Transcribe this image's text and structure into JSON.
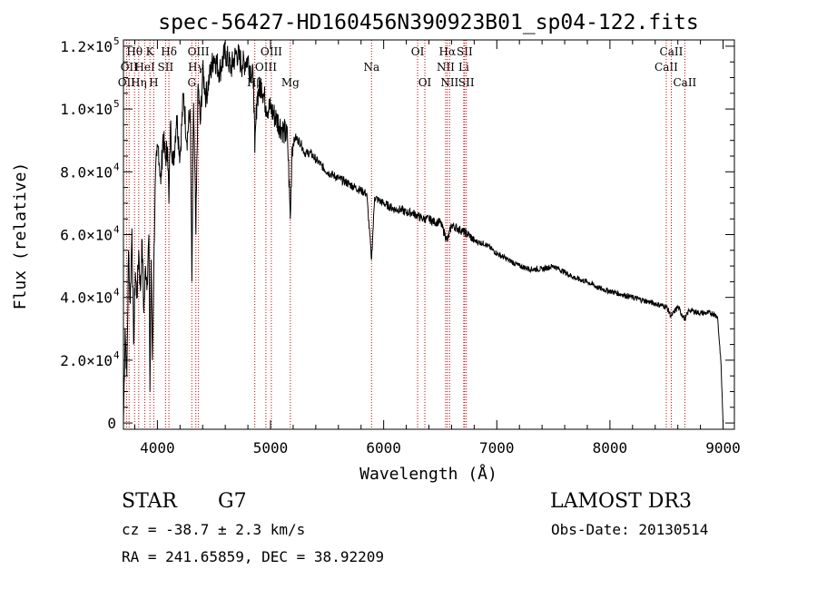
{
  "chart_data": {
    "type": "line",
    "title": "spec-56427-HD160456N390923B01_sp04-122.fits",
    "xlabel": "Wavelength (Å)",
    "ylabel": "Flux (relative)",
    "xlim": [
      3700,
      9100
    ],
    "ylim": [
      -2000,
      122000
    ],
    "x_ticks": [
      4000,
      5000,
      6000,
      7000,
      8000,
      9000
    ],
    "x_tick_labels": [
      "4000",
      "5000",
      "6000",
      "7000",
      "8000",
      "9000"
    ],
    "y_ticks": [
      {
        "value": 0,
        "mantissa": "0",
        "exp": ""
      },
      {
        "value": 20000,
        "mantissa": "2.0×10",
        "exp": "4"
      },
      {
        "value": 40000,
        "mantissa": "4.0×10",
        "exp": "4"
      },
      {
        "value": 60000,
        "mantissa": "6.0×10",
        "exp": "4"
      },
      {
        "value": 80000,
        "mantissa": "8.0×10",
        "exp": "4"
      },
      {
        "value": 100000,
        "mantissa": "1.0×10",
        "exp": "5"
      },
      {
        "value": 120000,
        "mantissa": "1.2×10",
        "exp": "5"
      }
    ],
    "series": [
      {
        "name": "spectrum",
        "color": "#000000",
        "x": [
          3700,
          3715,
          3730,
          3745,
          3760,
          3775,
          3790,
          3805,
          3820,
          3835,
          3850,
          3865,
          3880,
          3895,
          3910,
          3925,
          3934,
          3945,
          3955,
          3968,
          3980,
          3995,
          4010,
          4030,
          4050,
          4070,
          4090,
          4102,
          4115,
          4140,
          4170,
          4200,
          4230,
          4260,
          4290,
          4305,
          4320,
          4340,
          4360,
          4380,
          4400,
          4430,
          4460,
          4500,
          4550,
          4600,
          4650,
          4700,
          4750,
          4800,
          4850,
          4861,
          4880,
          4920,
          4960,
          5000,
          5050,
          5100,
          5150,
          5175,
          5190,
          5220,
          5270,
          5300,
          5350,
          5400,
          5450,
          5500,
          5550,
          5600,
          5650,
          5700,
          5750,
          5800,
          5850,
          5893,
          5920,
          5950,
          6000,
          6050,
          6100,
          6150,
          6200,
          6250,
          6300,
          6350,
          6400,
          6450,
          6500,
          6563,
          6600,
          6650,
          6700,
          6750,
          6800,
          6900,
          7000,
          7100,
          7200,
          7300,
          7400,
          7500,
          7600,
          7700,
          7800,
          7900,
          8000,
          8100,
          8200,
          8300,
          8400,
          8500,
          8542,
          8600,
          8662,
          8700,
          8800,
          8900,
          8950,
          8980,
          9000
        ],
        "y": [
          0,
          30000,
          15000,
          55000,
          38000,
          62000,
          25000,
          48000,
          40000,
          55000,
          42000,
          58000,
          35000,
          50000,
          45000,
          60000,
          10000,
          52000,
          20000,
          48000,
          75000,
          85000,
          88000,
          76000,
          92000,
          84000,
          88000,
          70000,
          95000,
          82000,
          98000,
          85000,
          105000,
          90000,
          100000,
          45000,
          102000,
          60000,
          108000,
          95000,
          112000,
          104000,
          110000,
          117000,
          112000,
          118000,
          113000,
          118000,
          114000,
          116000,
          109000,
          86000,
          104000,
          108000,
          101000,
          100000,
          97000,
          94000,
          91000,
          65000,
          88000,
          91000,
          89000,
          86000,
          86000,
          84000,
          82000,
          80000,
          79000,
          78000,
          77000,
          76000,
          75000,
          74000,
          73000,
          52000,
          72000,
          71000,
          70000,
          69000,
          68000,
          68000,
          67000,
          67000,
          66000,
          65000,
          65000,
          64000,
          64000,
          58000,
          63000,
          62000,
          61000,
          60000,
          58000,
          57000,
          54000,
          52000,
          50000,
          49000,
          49000,
          50000,
          48000,
          46000,
          45000,
          43000,
          42000,
          41000,
          40000,
          39000,
          38000,
          37000,
          34000,
          37000,
          33000,
          36000,
          35000,
          35000,
          34000,
          20000,
          0
        ]
      }
    ],
    "lines": [
      {
        "wl": 3727,
        "labels": [
          "OII"
        ],
        "row": 2
      },
      {
        "wl": 3750,
        "labels": [
          "OII"
        ],
        "row": 1
      },
      {
        "wl": 3798,
        "labels": [
          "Hθ"
        ],
        "row": 0
      },
      {
        "wl": 3835,
        "labels": [
          "Hη"
        ],
        "row": 2
      },
      {
        "wl": 3889,
        "labels": [
          "HeI"
        ],
        "row": 1
      },
      {
        "wl": 3934,
        "labels": [
          "K"
        ],
        "row": 0
      },
      {
        "wl": 3968,
        "labels": [
          "H"
        ],
        "row": 2
      },
      {
        "wl": 4072,
        "labels": [
          "SII"
        ],
        "row": 1
      },
      {
        "wl": 4102,
        "labels": [
          "Hδ"
        ],
        "row": 0
      },
      {
        "wl": 4304,
        "labels": [
          "G"
        ],
        "row": 2
      },
      {
        "wl": 4340,
        "labels": [
          "Hγ"
        ],
        "row": 1
      },
      {
        "wl": 4363,
        "labels": [
          "OIII"
        ],
        "row": 0
      },
      {
        "wl": 4861,
        "labels": [
          "Hβ"
        ],
        "row": 2
      },
      {
        "wl": 4959,
        "labels": [
          "OIII"
        ],
        "row": 1
      },
      {
        "wl": 5007,
        "labels": [
          "OIII"
        ],
        "row": 0
      },
      {
        "wl": 5175,
        "labels": [
          "Mg"
        ],
        "row": 2
      },
      {
        "wl": 5893,
        "labels": [
          "Na"
        ],
        "row": 1
      },
      {
        "wl": 6300,
        "labels": [
          "OI"
        ],
        "row": 0
      },
      {
        "wl": 6364,
        "labels": [
          "OI"
        ],
        "row": 2
      },
      {
        "wl": 6548,
        "labels": [
          "NII"
        ],
        "row": 1
      },
      {
        "wl": 6563,
        "labels": [
          "Hα"
        ],
        "row": 0
      },
      {
        "wl": 6583,
        "labels": [
          "NII"
        ],
        "row": 2
      },
      {
        "wl": 6708,
        "labels": [
          "Li"
        ],
        "row": 1
      },
      {
        "wl": 6716,
        "labels": [
          "SII"
        ],
        "row": 0
      },
      {
        "wl": 6731,
        "labels": [
          "SII"
        ],
        "row": 2
      },
      {
        "wl": 8498,
        "labels": [
          "CaII"
        ],
        "row": 1
      },
      {
        "wl": 8542,
        "labels": [
          "CaII"
        ],
        "row": 0
      },
      {
        "wl": 8662,
        "labels": [
          "CaII"
        ],
        "row": 2
      }
    ],
    "line_color": "#cc0000"
  },
  "info": {
    "class_label": "STAR",
    "subclass": "G7",
    "survey": "LAMOST DR3",
    "cz": "cz = -38.7 ± 2.3 km/s",
    "obs_date": "Obs-Date: 20130514",
    "coords": "RA = 241.65859, DEC =  38.92209"
  }
}
